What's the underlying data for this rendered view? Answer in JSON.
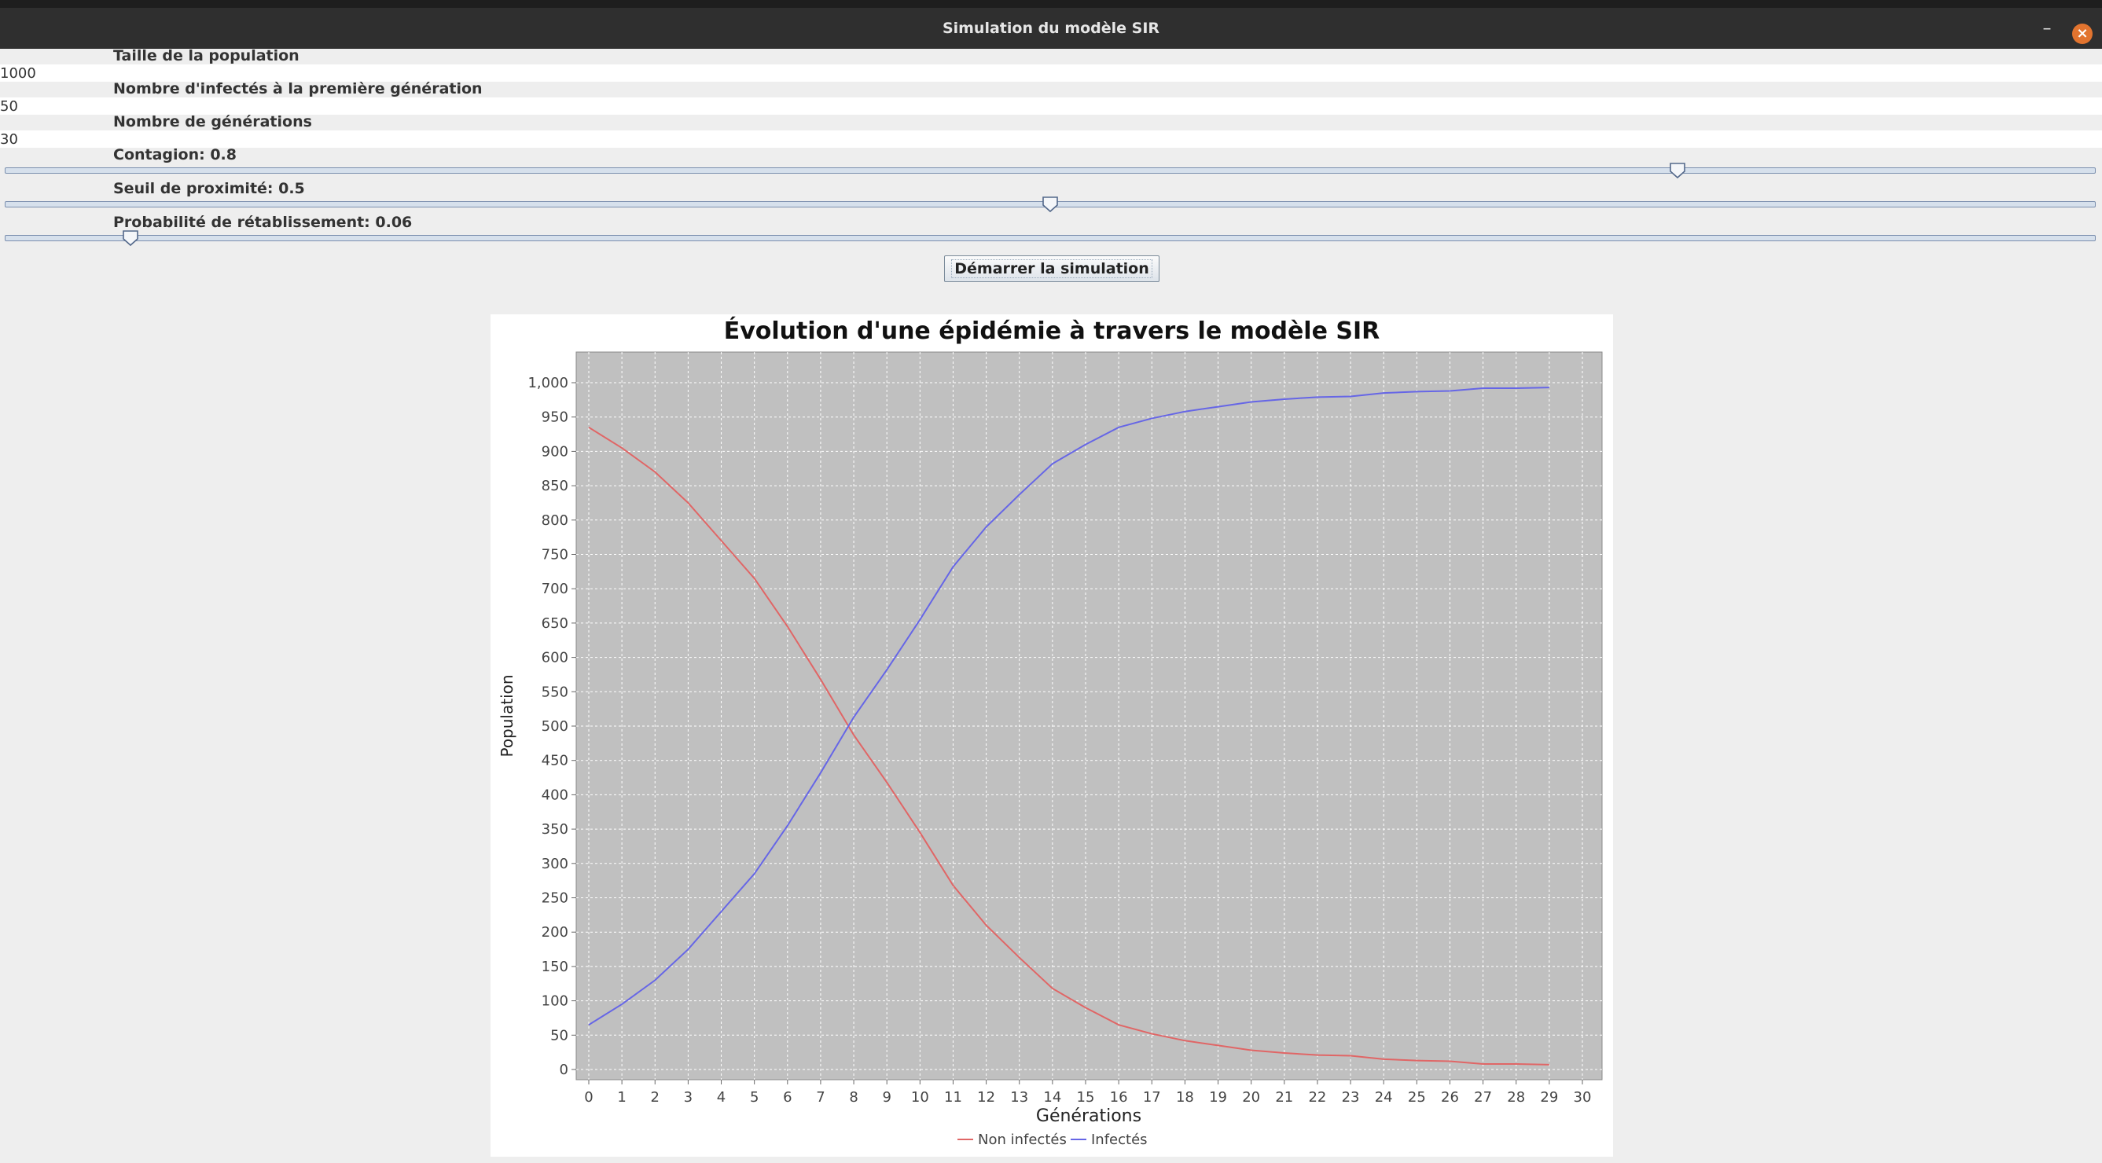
{
  "window": {
    "title": "Simulation du modèle SIR",
    "minimize_label": "–",
    "close_label": "×"
  },
  "form": {
    "population_label": "Taille de la population",
    "population_value": "1000",
    "infected_label": "Nombre d'infectés à la première génération",
    "infected_value": "50",
    "generations_label": "Nombre de générations",
    "generations_value": "30",
    "contagion_label": "Contagion: 0.8",
    "contagion_value": 0.8,
    "proximity_label": "Seuil de proximité: 0.5",
    "proximity_value": 0.5,
    "recovery_label": "Probabilité de rétablissement: 0.06",
    "recovery_value": 0.06,
    "start_button": "Démarrer la simulation"
  },
  "colors": {
    "non_infected": "#e06666",
    "infected": "#6666e6",
    "plot_background": "#c0c0c0",
    "slider_track": "#d6e0ec"
  },
  "chart_data": {
    "type": "line",
    "title": "Évolution d'une épidémie à travers le modèle SIR",
    "xlabel": "Générations",
    "ylabel": "Population",
    "xlim": [
      0,
      30
    ],
    "ylim": [
      0,
      1050
    ],
    "x_ticks": [
      0,
      1,
      2,
      3,
      4,
      5,
      6,
      7,
      8,
      9,
      10,
      11,
      12,
      13,
      14,
      15,
      16,
      17,
      18,
      19,
      20,
      21,
      22,
      23,
      24,
      25,
      26,
      27,
      28,
      29,
      30
    ],
    "y_ticks": [
      0,
      50,
      100,
      150,
      200,
      250,
      300,
      350,
      400,
      450,
      500,
      550,
      600,
      650,
      700,
      750,
      800,
      850,
      900,
      950,
      1000
    ],
    "y_tick_labels": [
      "0",
      "50",
      "100",
      "150",
      "200",
      "250",
      "300",
      "350",
      "400",
      "450",
      "500",
      "550",
      "600",
      "650",
      "700",
      "750",
      "800",
      "850",
      "900",
      "950",
      "1,000"
    ],
    "grid": true,
    "legend": "bottom",
    "x": [
      0,
      1,
      2,
      3,
      4,
      5,
      6,
      7,
      8,
      9,
      10,
      11,
      12,
      13,
      14,
      15,
      16,
      17,
      18,
      19,
      20,
      21,
      22,
      23,
      24,
      25,
      26,
      27,
      28,
      29
    ],
    "series": [
      {
        "name": "Non infectés",
        "values": [
          935,
          905,
          870,
          825,
          770,
          715,
          645,
          568,
          487,
          418,
          345,
          268,
          210,
          163,
          118,
          90,
          65,
          52,
          42,
          35,
          28,
          24,
          21,
          20,
          15,
          13,
          12,
          8,
          8,
          7
        ]
      },
      {
        "name": "Infectés",
        "values": [
          65,
          95,
          130,
          175,
          230,
          285,
          355,
          432,
          513,
          582,
          655,
          732,
          790,
          837,
          882,
          910,
          935,
          948,
          958,
          965,
          972,
          976,
          979,
          980,
          985,
          987,
          988,
          992,
          992,
          993
        ]
      }
    ]
  }
}
